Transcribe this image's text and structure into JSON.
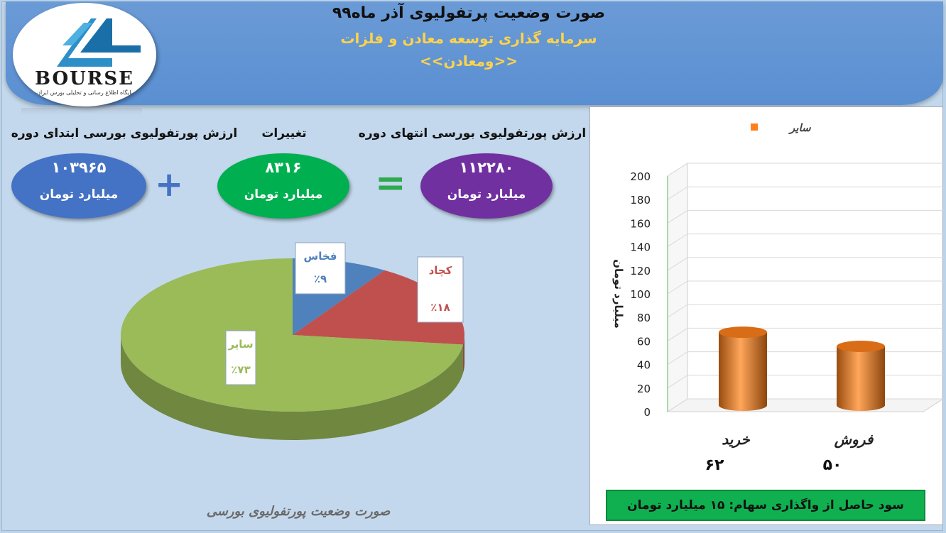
{
  "header": {
    "title": "صورت وضعیت پرتفولیوی آذر ماه۹۹",
    "company": "سرمایه گذاری توسعه معادن و فلزات",
    "symbol": "<<ومعادن>>"
  },
  "logo": {
    "text": "BOURSE",
    "subtext": "پایگاه اطلاع رسانی و تحلیلی بورس ایران"
  },
  "summary": {
    "start_label": "ارزش پورتفولیوی بورسی ابتدای دوره",
    "start_value": "۱۰۳۹۶۵",
    "change_label": "تغییرات",
    "change_value": "۸۳۱۶",
    "end_label": "ارزش پورتفولیوی بورسی انتهای دوره",
    "end_value": "۱۱۲۲۸۰",
    "unit": "میلیارد تومان",
    "plus_symbol": "+",
    "equals_symbol": "="
  },
  "colors": {
    "start": "#4472c4",
    "change": "#00b050",
    "end": "#7030a0",
    "pie_sayer": "#9bbb59",
    "pie_kechad": "#c0504d",
    "pie_fakhas": "#4f81bd",
    "bar": "#ff7f1a"
  },
  "pie_caption": "صورت وضعیت پورتفولیوی بورسی",
  "profit_text": "سود حاصل از واگذاری سهام: ۱۵ میلیارد تومان",
  "chart_data": [
    {
      "type": "pie",
      "slices": [
        {
          "label": "سایر",
          "value": 73,
          "display": "٪۷۳"
        },
        {
          "label": "فخاس",
          "value": 9,
          "display": "٪۹"
        },
        {
          "label": "کچاد",
          "value": 18,
          "display": "٪۱۸"
        }
      ]
    },
    {
      "type": "bar",
      "legend": "سایر",
      "legend_placement": "top-right",
      "ylabel": "میلیارد تومان",
      "ylim": [
        0,
        200
      ],
      "yticks": [
        0,
        20,
        40,
        60,
        80,
        100,
        120,
        140,
        160,
        180,
        200
      ],
      "categories": [
        "خرید",
        "فروش"
      ],
      "values": [
        62,
        50
      ],
      "value_labels": [
        "۶۲",
        "۵۰"
      ]
    }
  ]
}
